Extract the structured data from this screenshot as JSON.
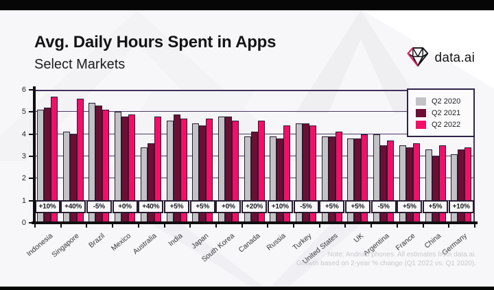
{
  "page": {
    "title": "Avg. Daily Hours Spent in Apps",
    "subtitle": "Select Markets",
    "brand": "data.ai",
    "note_line1": "Note: Android phones. All estimates from data.ai.",
    "note_line2": "Growth based on 2-year % change (Q1 2022 vs. Q1 2020)."
  },
  "colors": {
    "q2_2020": "#c3c2c5",
    "q2_2021": "#6e0e34",
    "q2_2022": "#f50e68",
    "bar_outline": "#261b2f",
    "gridline": "#4a3a63",
    "axis": "#0e0e11"
  },
  "chart_data": {
    "type": "bar",
    "title": "Avg. Daily Hours Spent in Apps — Select Markets",
    "xlabel": "",
    "ylabel": "",
    "ylim": [
      0,
      6
    ],
    "yticks": [
      0,
      1,
      2,
      3,
      4,
      5,
      6
    ],
    "grid": true,
    "legend_position": "top-right",
    "categories": [
      "Indonesia",
      "Singapore",
      "Brazil",
      "Mexico",
      "Australia",
      "India",
      "Japan",
      "South Korea",
      "Canada",
      "Russia",
      "Turkey",
      "United States",
      "UK",
      "Argentina",
      "France",
      "China",
      "Germany"
    ],
    "series": [
      {
        "name": "Q2 2020",
        "color": "#c3c2c5",
        "values": [
          5.1,
          4.1,
          5.4,
          5.0,
          3.4,
          4.6,
          4.5,
          4.8,
          3.9,
          3.9,
          4.5,
          3.9,
          3.8,
          4.0,
          3.5,
          3.3,
          3.1
        ]
      },
      {
        "name": "Q2 2021",
        "color": "#6e0e34",
        "values": [
          5.2,
          4.0,
          5.3,
          4.8,
          3.6,
          4.9,
          4.4,
          4.8,
          4.1,
          3.8,
          4.5,
          3.9,
          3.8,
          3.5,
          3.4,
          3.0,
          3.3
        ]
      },
      {
        "name": "Q2 2022",
        "color": "#f50e68",
        "values": [
          5.7,
          5.6,
          5.1,
          4.9,
          4.8,
          4.7,
          4.7,
          4.6,
          4.6,
          4.4,
          4.4,
          4.1,
          4.0,
          3.7,
          3.6,
          3.5,
          3.4
        ]
      }
    ],
    "growth_labels": [
      "+10%",
      "+40%",
      "-5%",
      "+0%",
      "+40%",
      "+5%",
      "+5%",
      "+0%",
      "+20%",
      "+10%",
      "-5%",
      "+5%",
      "+5%",
      "-5%",
      "+5%",
      "+5%",
      "+10%"
    ]
  }
}
